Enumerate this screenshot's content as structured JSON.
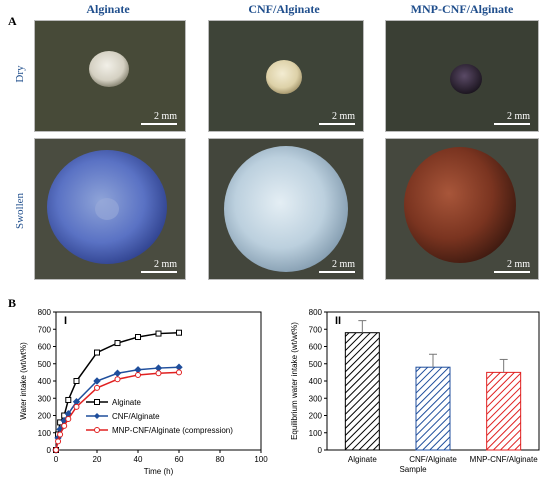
{
  "panel_a": {
    "letter": "A",
    "columns": [
      "Alginate",
      "CNF/Alginate",
      "MNP-CNF/Alginate"
    ],
    "rows": [
      "Dry",
      "Swollen"
    ],
    "scale_label": "2 mm"
  },
  "panel_b": {
    "letter": "B",
    "sub_i": "I",
    "sub_ii": "II"
  },
  "chart_data": [
    {
      "type": "line",
      "title": "",
      "xlabel": "Time (h)",
      "ylabel": "Water intake (wt/wt%)",
      "xlim": [
        0,
        100
      ],
      "ylim": [
        0,
        800
      ],
      "xticks": [
        0,
        20,
        40,
        60,
        80,
        100
      ],
      "yticks": [
        0,
        100,
        200,
        300,
        400,
        500,
        600,
        700,
        800
      ],
      "legend_position": "inside-bottom-left",
      "series": [
        {
          "name": "Alginate",
          "color": "#000000",
          "marker": "square",
          "x": [
            0,
            1,
            2,
            4,
            6,
            10,
            20,
            30,
            40,
            50,
            60
          ],
          "y": [
            0,
            90,
            160,
            200,
            290,
            400,
            565,
            620,
            655,
            675,
            680
          ]
        },
        {
          "name": "CNF/Alginate",
          "color": "#1f4e9c",
          "marker": "diamond",
          "x": [
            0,
            1,
            2,
            4,
            6,
            10,
            20,
            30,
            40,
            50,
            60
          ],
          "y": [
            0,
            70,
            120,
            170,
            210,
            280,
            400,
            445,
            465,
            475,
            480
          ]
        },
        {
          "name": "MNP-CNF/Alginate (compression)",
          "color": "#e02020",
          "marker": "circle",
          "x": [
            0,
            1,
            2,
            4,
            6,
            10,
            20,
            30,
            40,
            50,
            60
          ],
          "y": [
            0,
            50,
            90,
            140,
            180,
            250,
            360,
            410,
            435,
            445,
            450
          ]
        }
      ]
    },
    {
      "type": "bar",
      "title": "",
      "xlabel": "Sample",
      "ylabel": "Equilibrium water intake (wt/wt%)",
      "ylim": [
        0,
        800
      ],
      "yticks": [
        0,
        100,
        200,
        300,
        400,
        500,
        600,
        700,
        800
      ],
      "categories": [
        "Alginate",
        "CNF/Alginate",
        "MNP-CNF/Alginate"
      ],
      "values": [
        680,
        480,
        450
      ],
      "errors": [
        70,
        75,
        75
      ],
      "colors": [
        "#000000",
        "#1f4e9c",
        "#e02020"
      ],
      "pattern": "diagonal-hatch"
    }
  ]
}
